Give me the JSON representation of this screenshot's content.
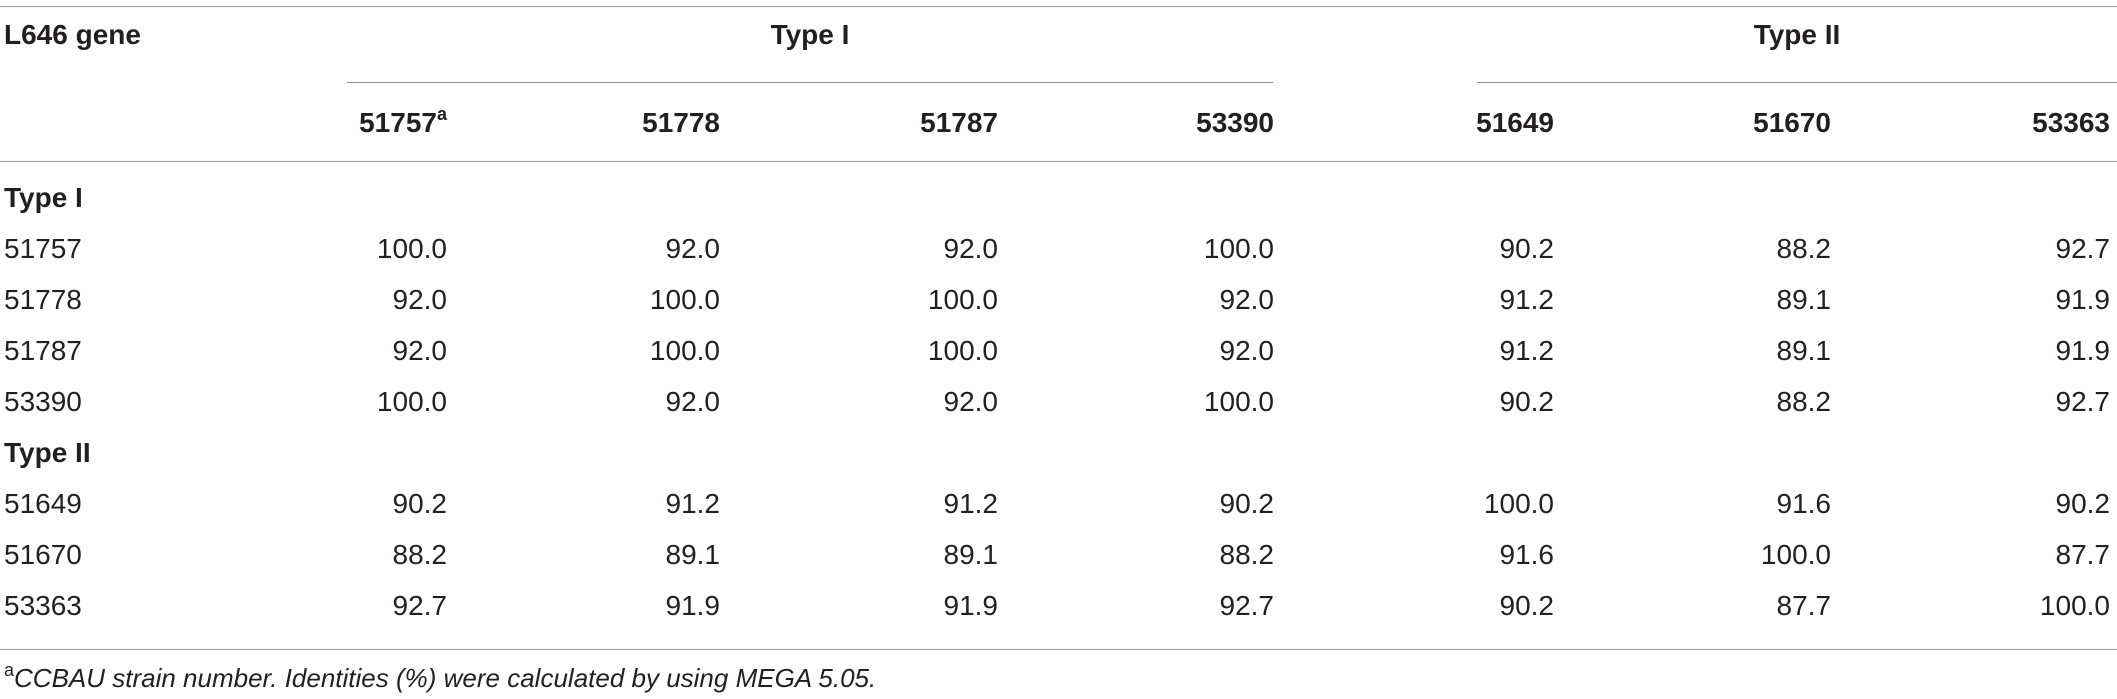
{
  "header": {
    "corner_label": "L646 gene",
    "groups": [
      {
        "label": "Type I"
      },
      {
        "label": "Type II"
      }
    ],
    "columns": [
      {
        "label": "51757",
        "sup": "a"
      },
      {
        "label": "51778"
      },
      {
        "label": "51787"
      },
      {
        "label": "53390"
      },
      {
        "label": "51649"
      },
      {
        "label": "51670"
      },
      {
        "label": "53363"
      }
    ]
  },
  "sections": [
    {
      "label": "Type I",
      "rows": [
        {
          "strain": "51757",
          "values": [
            "100.0",
            "92.0",
            "92.0",
            "100.0",
            "90.2",
            "88.2",
            "92.7"
          ]
        },
        {
          "strain": "51778",
          "values": [
            "92.0",
            "100.0",
            "100.0",
            "92.0",
            "91.2",
            "89.1",
            "91.9"
          ]
        },
        {
          "strain": "51787",
          "values": [
            "92.0",
            "100.0",
            "100.0",
            "92.0",
            "91.2",
            "89.1",
            "91.9"
          ]
        },
        {
          "strain": "53390",
          "values": [
            "100.0",
            "92.0",
            "92.0",
            "100.0",
            "90.2",
            "88.2",
            "92.7"
          ]
        }
      ]
    },
    {
      "label": "Type II",
      "rows": [
        {
          "strain": "51649",
          "values": [
            "90.2",
            "91.2",
            "91.2",
            "90.2",
            "100.0",
            "91.6",
            "90.2"
          ]
        },
        {
          "strain": "51670",
          "values": [
            "88.2",
            "89.1",
            "89.1",
            "88.2",
            "91.6",
            "100.0",
            "87.7"
          ]
        },
        {
          "strain": "53363",
          "values": [
            "92.7",
            "91.9",
            "91.9",
            "92.7",
            "90.2",
            "87.7",
            "100.0"
          ]
        }
      ]
    }
  ],
  "footnote": {
    "marker": "a",
    "text": "CCBAU strain number. Identities (%) were calculated by using MEGA 5.05."
  }
}
